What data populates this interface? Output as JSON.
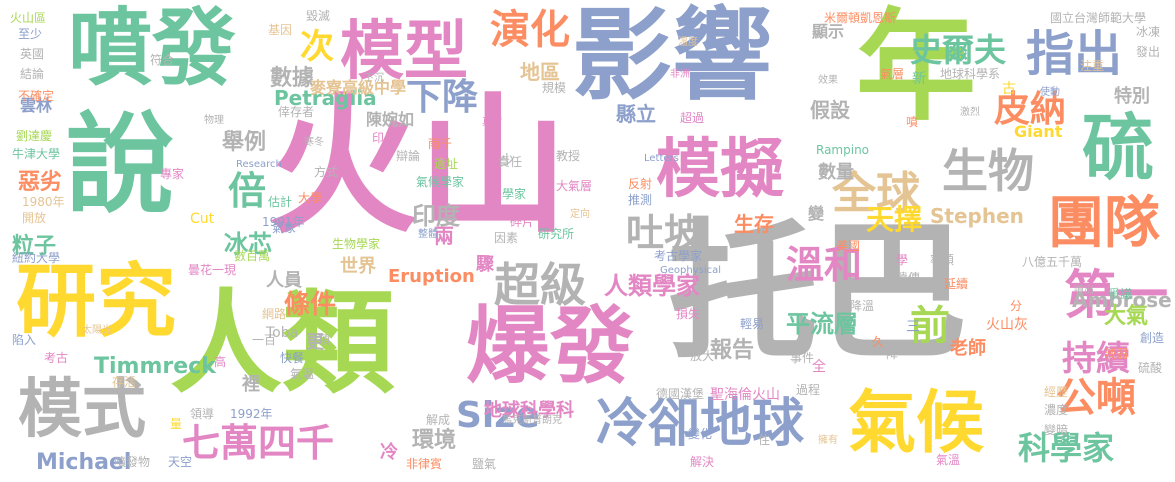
{
  "palette": {
    "green": "#6cc59f",
    "pink": "#e387c4",
    "lime": "#a6d854",
    "grey": "#b3b3b3",
    "blue": "#8da0cb",
    "orange": "#fc8d62",
    "yellow": "#ffd92f",
    "tan": "#e5c494"
  },
  "words": [
    {
      "text": "火山",
      "color": "pink"
    },
    {
      "text": "托巴",
      "color": "grey"
    },
    {
      "text": "人類",
      "color": "lime"
    },
    {
      "text": "影響",
      "color": "blue"
    },
    {
      "text": "說",
      "color": "green"
    },
    {
      "text": "年",
      "color": "lime"
    },
    {
      "text": "噴發",
      "color": "green"
    },
    {
      "text": "研究",
      "color": "yellow"
    },
    {
      "text": "爆發",
      "color": "pink"
    },
    {
      "text": "模型",
      "color": "pink"
    },
    {
      "text": "模擬",
      "color": "pink"
    },
    {
      "text": "模式",
      "color": "grey"
    },
    {
      "text": "氣候",
      "color": "yellow"
    },
    {
      "text": "冷卻地球",
      "color": "blue"
    },
    {
      "text": "硫",
      "color": "green"
    },
    {
      "text": "團隊",
      "color": "orange"
    },
    {
      "text": "第一",
      "color": "pink"
    },
    {
      "text": "生物",
      "color": "grey"
    },
    {
      "text": "指出",
      "color": "blue"
    },
    {
      "text": "超級",
      "color": "grey"
    },
    {
      "text": "七萬四千",
      "color": "pink"
    },
    {
      "text": "全球",
      "color": "tan"
    },
    {
      "text": "Size",
      "color": "blue"
    },
    {
      "text": "公噸",
      "color": "orange"
    },
    {
      "text": "演化",
      "color": "orange"
    },
    {
      "text": "史爾夫",
      "color": "green"
    },
    {
      "text": "下降",
      "color": "blue"
    },
    {
      "text": "皮納",
      "color": "orange"
    },
    {
      "text": "吐坡",
      "color": "grey"
    },
    {
      "text": "倍",
      "color": "green"
    },
    {
      "text": "溫和",
      "color": "pink"
    },
    {
      "text": "持續",
      "color": "pink"
    },
    {
      "text": "前",
      "color": "lime"
    },
    {
      "text": "科學家",
      "color": "green"
    },
    {
      "text": "次",
      "color": "yellow"
    },
    {
      "text": "Stephen",
      "color": "tan"
    },
    {
      "text": "Ambrose",
      "color": "grey"
    },
    {
      "text": "天擇",
      "color": "yellow"
    },
    {
      "text": "人類學家",
      "color": "pink"
    },
    {
      "text": "平流層",
      "color": "green"
    },
    {
      "text": "Michael",
      "color": "blue"
    },
    {
      "text": "Timmreck",
      "color": "green"
    },
    {
      "text": "條件",
      "color": "orange"
    },
    {
      "text": "印度",
      "color": "grey"
    },
    {
      "text": "冰芯",
      "color": "green"
    },
    {
      "text": "數據",
      "color": "grey"
    },
    {
      "text": "Petraglia",
      "color": "green"
    },
    {
      "text": "舉例",
      "color": "grey"
    },
    {
      "text": "大氣",
      "color": "lime"
    },
    {
      "text": "報告",
      "color": "grey"
    },
    {
      "text": "環境",
      "color": "grey"
    },
    {
      "text": "粒子",
      "color": "green"
    },
    {
      "text": "惡劣",
      "color": "orange"
    },
    {
      "text": "雲林",
      "color": "blue"
    },
    {
      "text": "麥寮高級中學",
      "color": "tan"
    },
    {
      "text": "生存",
      "color": "orange"
    },
    {
      "text": "地區",
      "color": "tan"
    },
    {
      "text": "假設",
      "color": "grey"
    },
    {
      "text": "數量",
      "color": "grey"
    },
    {
      "text": "特別",
      "color": "grey"
    },
    {
      "text": "世界",
      "color": "tan"
    },
    {
      "text": "Eruption",
      "color": "orange"
    },
    {
      "text": "人員",
      "color": "grey"
    },
    {
      "text": "陳婉如",
      "color": "grey"
    },
    {
      "text": "地球科學科",
      "color": "pink"
    },
    {
      "text": "縣立",
      "color": "blue"
    },
    {
      "text": "兩",
      "color": "pink"
    },
    {
      "text": "驟",
      "color": "pink"
    },
    {
      "text": "更",
      "color": "grey"
    },
    {
      "text": "裡",
      "color": "grey"
    },
    {
      "text": "老師",
      "color": "orange"
    },
    {
      "text": "冷",
      "color": "pink"
    },
    {
      "text": "顯示",
      "color": "grey"
    },
    {
      "text": "火山灰",
      "color": "orange"
    },
    {
      "text": "變",
      "color": "grey"
    },
    {
      "text": "Giant",
      "color": "yellow"
    },
    {
      "text": "米爾頓凱恩斯",
      "color": "orange"
    },
    {
      "text": "國立台灣師範大學",
      "color": "grey"
    },
    {
      "text": "冰凍",
      "color": "grey"
    },
    {
      "text": "地球科學系",
      "color": "grey"
    },
    {
      "text": "火山區",
      "color": "lime"
    },
    {
      "text": "英國",
      "color": "grey"
    },
    {
      "text": "結論",
      "color": "grey"
    },
    {
      "text": "至少",
      "color": "blue"
    },
    {
      "text": "不確定",
      "color": "orange"
    },
    {
      "text": "劉達慶",
      "color": "lime"
    },
    {
      "text": "牛津大學",
      "color": "green"
    },
    {
      "text": "1980年",
      "color": "tan"
    },
    {
      "text": "開放",
      "color": "tan"
    },
    {
      "text": "紐約大學",
      "color": "blue"
    },
    {
      "text": "太陽光",
      "color": "tan"
    },
    {
      "text": "陷入",
      "color": "blue"
    },
    {
      "text": "考古",
      "color": "pink"
    },
    {
      "text": "1992年",
      "color": "blue"
    },
    {
      "text": "1991年",
      "color": "blue"
    },
    {
      "text": "噴發物",
      "color": "grey"
    },
    {
      "text": "Research",
      "color": "blue"
    },
    {
      "text": "Cut",
      "color": "yellow"
    },
    {
      "text": "Toba",
      "color": "grey"
    },
    {
      "text": "Rampino",
      "color": "green"
    },
    {
      "text": "Letters",
      "color": "blue"
    },
    {
      "text": "Geophysical",
      "color": "blue"
    },
    {
      "text": "研究所",
      "color": "green"
    },
    {
      "text": "考古學家",
      "color": "blue"
    },
    {
      "text": "生物學家",
      "color": "lime"
    },
    {
      "text": "天空",
      "color": "blue"
    },
    {
      "text": "德國漢堡",
      "color": "grey"
    },
    {
      "text": "聖海倫火山",
      "color": "pink"
    },
    {
      "text": "八億五千萬",
      "color": "grey"
    },
    {
      "text": "馬克斯普朗克",
      "color": "grey"
    },
    {
      "text": "氣候學家",
      "color": "green"
    },
    {
      "text": "大氣層",
      "color": "pink"
    },
    {
      "text": "曇花一現",
      "color": "pink"
    },
    {
      "text": "毀滅",
      "color": "grey"
    },
    {
      "text": "基因",
      "color": "tan"
    },
    {
      "text": "符合",
      "color": "grey"
    },
    {
      "text": "倖存者",
      "color": "grey"
    },
    {
      "text": "下沉",
      "color": "grey"
    },
    {
      "text": "規模",
      "color": "grey"
    },
    {
      "text": "教授",
      "color": "grey"
    },
    {
      "text": "責任",
      "color": "grey"
    },
    {
      "text": "遺址",
      "color": "lime"
    },
    {
      "text": "印尼",
      "color": "pink"
    },
    {
      "text": "專家",
      "color": "pink"
    },
    {
      "text": "方式",
      "color": "grey"
    },
    {
      "text": "估計",
      "color": "green"
    },
    {
      "text": "氣象",
      "color": "blue"
    },
    {
      "text": "數百萬",
      "color": "lime"
    },
    {
      "text": "網路",
      "color": "tan"
    },
    {
      "text": "快餐",
      "color": "blue"
    },
    {
      "text": "氣溫",
      "color": "grey"
    },
    {
      "text": "存活",
      "color": "tan"
    },
    {
      "text": "領導",
      "color": "grey"
    },
    {
      "text": "解成",
      "color": "grey"
    },
    {
      "text": "鹽氣",
      "color": "grey"
    },
    {
      "text": "非律賓",
      "color": "orange"
    },
    {
      "text": "碎片",
      "color": "pink"
    },
    {
      "text": "因素",
      "color": "grey"
    },
    {
      "text": "事件",
      "color": "grey"
    },
    {
      "text": "過程",
      "color": "grey"
    },
    {
      "text": "減弱",
      "color": "orange"
    },
    {
      "text": "爭議",
      "color": "green"
    },
    {
      "text": "創造",
      "color": "blue"
    },
    {
      "text": "延續",
      "color": "orange"
    },
    {
      "text": "遺傳",
      "color": "grey"
    },
    {
      "text": "率領",
      "color": "grey"
    },
    {
      "text": "美國",
      "color": "orange"
    },
    {
      "text": "硫酸",
      "color": "grey"
    },
    {
      "text": "噴出",
      "color": "grey"
    },
    {
      "text": "降溫",
      "color": "grey"
    },
    {
      "text": "經歷",
      "color": "tan"
    },
    {
      "text": "濃度",
      "color": "grey"
    },
    {
      "text": "變暗",
      "color": "grey"
    },
    {
      "text": "擁有",
      "color": "tan"
    },
    {
      "text": "氣層",
      "color": "orange"
    },
    {
      "text": "效果",
      "color": "grey"
    },
    {
      "text": "非洲",
      "color": "pink"
    },
    {
      "text": "超過",
      "color": "pink"
    },
    {
      "text": "放大",
      "color": "grey"
    },
    {
      "text": "損失",
      "color": "pink"
    },
    {
      "text": "反射",
      "color": "orange"
    },
    {
      "text": "推測",
      "color": "blue"
    },
    {
      "text": "定向",
      "color": "tan"
    },
    {
      "text": "發出",
      "color": "grey"
    },
    {
      "text": "注重",
      "color": "tan"
    },
    {
      "text": "使動",
      "color": "blue"
    },
    {
      "text": "激烈",
      "color": "grey"
    },
    {
      "text": "寒冬",
      "color": "grey"
    },
    {
      "text": "辯論",
      "color": "grey"
    },
    {
      "text": "真實",
      "color": "pink"
    },
    {
      "text": "雨千",
      "color": "orange"
    },
    {
      "text": "物理",
      "color": "grey"
    },
    {
      "text": "溫度",
      "color": "tan"
    },
    {
      "text": "氣溫",
      "color": "pink"
    },
    {
      "text": "解決",
      "color": "pink"
    },
    {
      "text": "變化",
      "color": "blue"
    },
    {
      "text": "輕易",
      "color": "blue"
    },
    {
      "text": "學家",
      "color": "green"
    },
    {
      "text": "大學",
      "color": "orange"
    },
    {
      "text": "整體",
      "color": "blue"
    },
    {
      "text": "少",
      "color": "grey"
    },
    {
      "text": "新",
      "color": "green"
    },
    {
      "text": "古",
      "color": "yellow"
    },
    {
      "text": "項",
      "color": "grey"
    },
    {
      "text": "三",
      "color": "blue"
    },
    {
      "text": "高",
      "color": "pink"
    },
    {
      "text": "量",
      "color": "yellow"
    },
    {
      "text": "學",
      "color": "pink"
    },
    {
      "text": "全",
      "color": "pink"
    },
    {
      "text": "久",
      "color": "orange"
    },
    {
      "text": "分",
      "color": "orange"
    },
    {
      "text": "降",
      "color": "grey"
    },
    {
      "text": "住",
      "color": "grey"
    },
    {
      "text": "噴",
      "color": "orange"
    },
    {
      "text": "一百",
      "color": "grey"
    }
  ]
}
